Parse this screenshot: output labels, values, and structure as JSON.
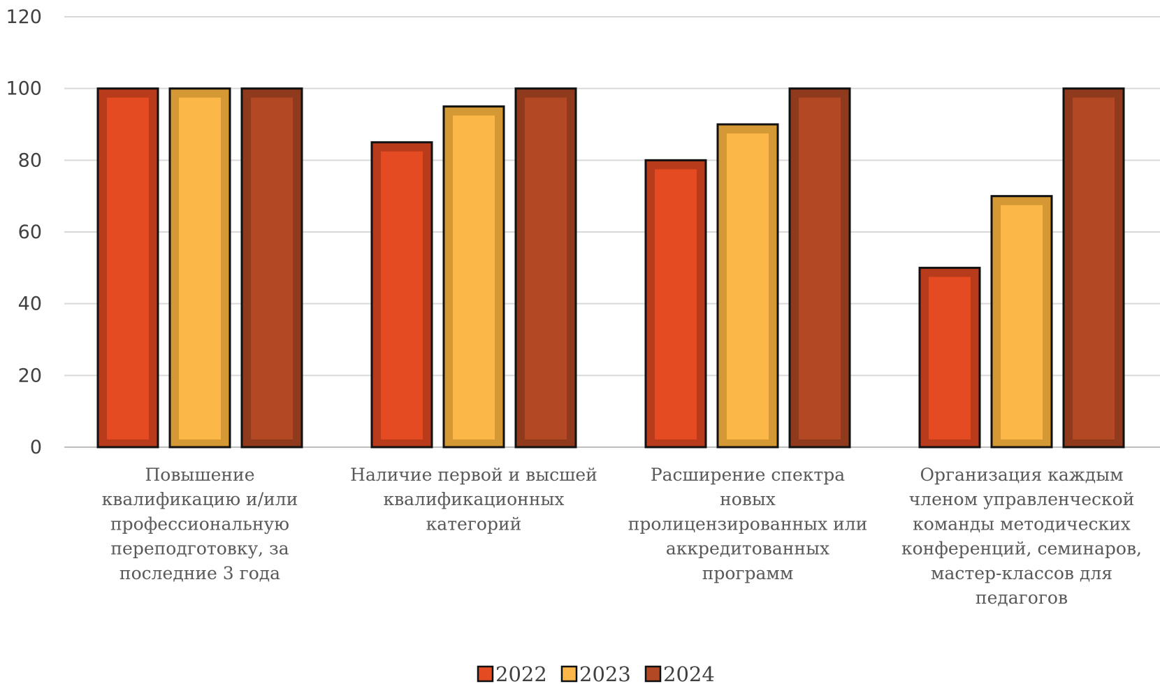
{
  "chart_data": {
    "type": "bar",
    "title": "",
    "xlabel": "",
    "ylabel": "",
    "ylim": [
      0,
      120
    ],
    "yticks": [
      0,
      20,
      40,
      60,
      80,
      100,
      120
    ],
    "grid": true,
    "legend_position": "bottom",
    "categories": [
      [
        "Повышение",
        "квалификацию и/или",
        "профессиональную",
        "переподготовку, за",
        "последние 3 года"
      ],
      [
        "Наличие  первой и высшей",
        "квалификационных",
        "категорий"
      ],
      [
        "Расширение спектра",
        "новых",
        "пролицензированных или",
        "аккредитованных",
        "программ"
      ],
      [
        "Организация каждым",
        "членом  управленческой",
        "команды методических",
        "конференций, семинаров,",
        "мастер-классов для",
        "педагогов"
      ]
    ],
    "series": [
      {
        "name": "2022",
        "values": [
          100,
          85,
          80,
          50
        ],
        "color": "#e44b22",
        "border": "#b83c1b"
      },
      {
        "name": "2023",
        "values": [
          100,
          95,
          90,
          70
        ],
        "color": "#fbb848",
        "border": "#d49935"
      },
      {
        "name": "2024",
        "values": [
          100,
          100,
          100,
          100
        ],
        "color": "#b24824",
        "border": "#8f3a1c"
      }
    ]
  }
}
